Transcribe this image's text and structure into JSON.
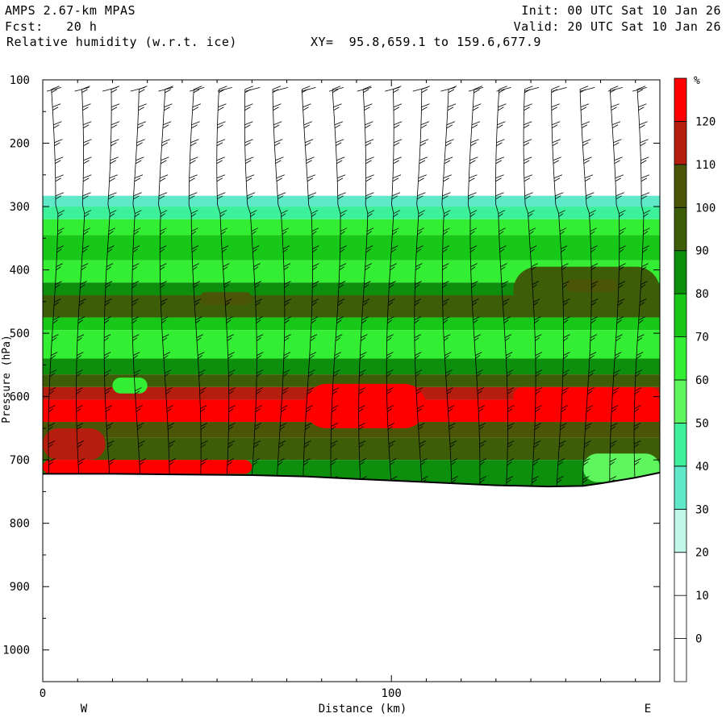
{
  "header": {
    "model": "AMPS 2.67-km MPAS",
    "forecast": "Fcst:   20 h",
    "field": "Relative humidity (w.r.t. ice)",
    "xy_range": "XY=  95.8,659.1 to 159.6,677.9",
    "init": "Init: 00 UTC Sat 10 Jan 26",
    "valid": "Valid: 20 UTC Sat 10 Jan 26"
  },
  "chart_data": {
    "type": "heatmap",
    "xlabel": "Distance (km)",
    "ylabel": "Pressure (hPa)",
    "x_ticks": [
      "0",
      "100"
    ],
    "y_ticks": [
      "100",
      "200",
      "300",
      "400",
      "500",
      "600",
      "700",
      "800",
      "900",
      "1000"
    ],
    "xlim": [
      0,
      177
    ],
    "ylim": [
      100,
      1050
    ],
    "direction_labels": {
      "west": "W",
      "east": "E"
    },
    "colorbar": {
      "unit": "%",
      "levels": [
        0,
        10,
        20,
        30,
        40,
        50,
        60,
        70,
        80,
        90,
        100,
        110,
        120
      ],
      "colors": [
        "#ffffff",
        "#ffffff",
        "#ffffff",
        "#bff7e9",
        "#5fe9c8",
        "#3df19b",
        "#5ef55e",
        "#33ee33",
        "#18c818",
        "#0d8f0d",
        "#3e5d08",
        "#4a5507",
        "#b51d0e",
        "#ff0000"
      ]
    },
    "terrain": {
      "x": [
        0,
        20,
        40,
        60,
        75,
        90,
        110,
        130,
        145,
        155,
        160,
        170,
        177
      ],
      "p": [
        722,
        722,
        723,
        724,
        726,
        730,
        735,
        740,
        742,
        741,
        737,
        728,
        720
      ]
    },
    "rh_layers": [
      {
        "p_top": 100,
        "p_bot": 283,
        "rh": 5
      },
      {
        "p_top": 283,
        "p_bot": 300,
        "rh": 35
      },
      {
        "p_top": 300,
        "p_bot": 320,
        "rh": 45
      },
      {
        "p_top": 320,
        "p_bot": 345,
        "rh": 65
      },
      {
        "p_top": 345,
        "p_bot": 385,
        "rh": 75
      },
      {
        "p_top": 385,
        "p_bot": 420,
        "rh": 65
      },
      {
        "p_top": 420,
        "p_bot": 440,
        "rh": 85
      },
      {
        "p_top": 440,
        "p_bot": 475,
        "rh": 95
      },
      {
        "p_top": 475,
        "p_bot": 495,
        "rh": 75
      },
      {
        "p_top": 495,
        "p_bot": 540,
        "rh": 65
      },
      {
        "p_top": 540,
        "p_bot": 565,
        "rh": 85
      },
      {
        "p_top": 565,
        "p_bot": 585,
        "rh": 95
      },
      {
        "p_top": 585,
        "p_bot": 605,
        "rh": 115
      },
      {
        "p_top": 605,
        "p_bot": 640,
        "rh": 125
      },
      {
        "p_top": 640,
        "p_bot": 665,
        "rh": 105
      },
      {
        "p_top": 665,
        "p_bot": 700,
        "rh": 95
      },
      {
        "p_top": 700,
        "p_bot": 745,
        "rh": 85
      }
    ],
    "rh_patches": [
      {
        "x0": 0,
        "x1": 18,
        "p0": 650,
        "p1": 700,
        "rh": 115
      },
      {
        "x0": 0,
        "x1": 60,
        "p0": 700,
        "p1": 722,
        "rh": 125
      },
      {
        "x0": 15,
        "x1": 120,
        "p0": 440,
        "p1": 470,
        "rh": 95
      },
      {
        "x0": 45,
        "x1": 60,
        "p0": 435,
        "p1": 455,
        "rh": 105
      },
      {
        "x0": 135,
        "x1": 177,
        "p0": 395,
        "p1": 470,
        "rh": 95
      },
      {
        "x0": 150,
        "x1": 165,
        "p0": 415,
        "p1": 435,
        "rh": 105
      },
      {
        "x0": 75,
        "x1": 110,
        "p0": 580,
        "p1": 650,
        "rh": 125
      },
      {
        "x0": 135,
        "x1": 177,
        "p0": 585,
        "p1": 615,
        "rh": 125
      },
      {
        "x0": 20,
        "x1": 30,
        "p0": 570,
        "p1": 595,
        "rh": 65
      },
      {
        "x0": 155,
        "x1": 177,
        "p0": 690,
        "p1": 735,
        "rh": 55
      }
    ],
    "barb_x": [
      3,
      11,
      19,
      27,
      35,
      44,
      52,
      60,
      68,
      76,
      84,
      92,
      100,
      108,
      116,
      124,
      132,
      140,
      148,
      156,
      164,
      171
    ]
  }
}
